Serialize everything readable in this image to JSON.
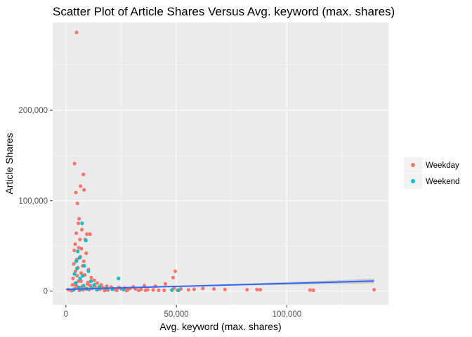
{
  "chart_data": {
    "type": "scatter",
    "title": "Scatter Plot of Article Shares Versus Avg. keyword (max. shares)",
    "xlabel": "Avg. keyword (max. shares)",
    "ylabel": "Article Shares",
    "xlim": [
      -6000,
      146000
    ],
    "ylim": [
      -15000,
      297000
    ],
    "x_ticks": [
      0,
      50000,
      100000
    ],
    "x_tick_labels": [
      "0",
      "50,000",
      "100,000"
    ],
    "y_ticks": [
      0,
      100000,
      200000
    ],
    "y_tick_labels": [
      "0",
      "100,000",
      "200,000"
    ],
    "grid": true,
    "legend_position": "right",
    "series": [
      {
        "name": "Weekday",
        "color": "#F8766D",
        "points": [
          [
            4800,
            286000
          ],
          [
            3900,
            141000
          ],
          [
            7900,
            129000
          ],
          [
            6600,
            116000
          ],
          [
            4500,
            109000
          ],
          [
            8200,
            112000
          ],
          [
            5200,
            97000
          ],
          [
            6000,
            80000
          ],
          [
            5600,
            75000
          ],
          [
            7200,
            68000
          ],
          [
            4700,
            64000
          ],
          [
            9500,
            63000
          ],
          [
            10900,
            63000
          ],
          [
            6300,
            57000
          ],
          [
            8800,
            57000
          ],
          [
            4200,
            52000
          ],
          [
            5800,
            48000
          ],
          [
            7000,
            47000
          ],
          [
            3800,
            45000
          ],
          [
            9200,
            42000
          ],
          [
            6500,
            38000
          ],
          [
            4900,
            35000
          ],
          [
            8100,
            33000
          ],
          [
            3500,
            30000
          ],
          [
            7600,
            28000
          ],
          [
            5400,
            26000
          ],
          [
            10200,
            24000
          ],
          [
            4300,
            22000
          ],
          [
            6900,
            20000
          ],
          [
            8500,
            18000
          ],
          [
            11500,
            15000
          ],
          [
            3200,
            14000
          ],
          [
            12800,
            12000
          ],
          [
            5700,
            11000
          ],
          [
            14200,
            9000
          ],
          [
            9800,
            8000
          ],
          [
            16000,
            7000
          ],
          [
            4600,
            6500
          ],
          [
            18500,
            5500
          ],
          [
            7300,
            5000
          ],
          [
            20500,
            4500
          ],
          [
            13500,
            4000
          ],
          [
            24000,
            4000
          ],
          [
            26500,
            3500
          ],
          [
            29000,
            3000
          ],
          [
            31500,
            2500
          ],
          [
            15500,
            2200
          ],
          [
            34000,
            2000
          ],
          [
            10500,
            1800
          ],
          [
            22500,
            1600
          ],
          [
            37000,
            1500
          ],
          [
            39500,
            1400
          ],
          [
            19000,
            1200
          ],
          [
            42000,
            1000
          ],
          [
            6100,
            900
          ],
          [
            33000,
            800
          ],
          [
            17500,
            700
          ],
          [
            27500,
            600
          ],
          [
            44500,
            900
          ],
          [
            48000,
            1300
          ],
          [
            50500,
            1100
          ],
          [
            36000,
            1000
          ],
          [
            2500,
            500
          ],
          [
            1200,
            1500
          ],
          [
            8700,
            2400
          ],
          [
            12000,
            3100
          ],
          [
            21500,
            2700
          ],
          [
            30500,
            4800
          ],
          [
            35500,
            6000
          ],
          [
            40500,
            5500
          ],
          [
            45000,
            8000
          ],
          [
            48500,
            15000
          ],
          [
            49500,
            22000
          ],
          [
            49000,
            3500
          ],
          [
            52000,
            2500
          ],
          [
            55500,
            1500
          ],
          [
            58000,
            2000
          ],
          [
            62000,
            3000
          ],
          [
            67000,
            2500
          ],
          [
            72000,
            1800
          ],
          [
            82000,
            1500
          ],
          [
            86500,
            1800
          ],
          [
            88000,
            1500
          ],
          [
            110500,
            1200
          ],
          [
            112000,
            1000
          ],
          [
            139500,
            1500
          ],
          [
            3000,
            7000
          ],
          [
            5100,
            17000
          ],
          [
            6800,
            11000
          ],
          [
            9000,
            3000
          ],
          [
            11000,
            6000
          ],
          [
            14800,
            2000
          ],
          [
            16800,
            3800
          ],
          [
            23000,
            1000
          ],
          [
            25000,
            2800
          ],
          [
            28000,
            1400
          ],
          [
            4000,
            2800
          ],
          [
            7800,
            1600
          ],
          [
            5500,
            4200
          ],
          [
            10000,
            9500
          ]
        ]
      },
      {
        "name": "Weekend",
        "color": "#00BFC4",
        "points": [
          [
            7300,
            75000
          ],
          [
            9000,
            56000
          ],
          [
            5400,
            44000
          ],
          [
            6200,
            37000
          ],
          [
            4700,
            33000
          ],
          [
            8300,
            28000
          ],
          [
            5000,
            25000
          ],
          [
            10200,
            22000
          ],
          [
            3900,
            19000
          ],
          [
            7600,
            17000
          ],
          [
            6400,
            14000
          ],
          [
            23800,
            14000
          ],
          [
            11300,
            11000
          ],
          [
            4400,
            9000
          ],
          [
            12800,
            7000
          ],
          [
            8000,
            6000
          ],
          [
            15200,
            5000
          ],
          [
            5900,
            4000
          ],
          [
            18300,
            3000
          ],
          [
            9600,
            2500
          ],
          [
            21000,
            2000
          ],
          [
            14000,
            1500
          ],
          [
            26000,
            1800
          ],
          [
            48000,
            1200
          ],
          [
            51000,
            900
          ],
          [
            3500,
            1400
          ],
          [
            6900,
            2200
          ],
          [
            11800,
            3600
          ]
        ]
      }
    ],
    "trend_line": {
      "label_printed": false,
      "color": "#3366FF",
      "band_color": "#999999",
      "points": [
        [
          0,
          2000
        ],
        [
          20000,
          3300
        ],
        [
          40000,
          4600
        ],
        [
          60000,
          5900
        ],
        [
          80000,
          7200
        ],
        [
          100000,
          8500
        ],
        [
          120000,
          9800
        ],
        [
          139500,
          11200
        ]
      ],
      "band_halfwidth": [
        900,
        600,
        500,
        700,
        1000,
        1500,
        2000,
        2600
      ]
    }
  }
}
